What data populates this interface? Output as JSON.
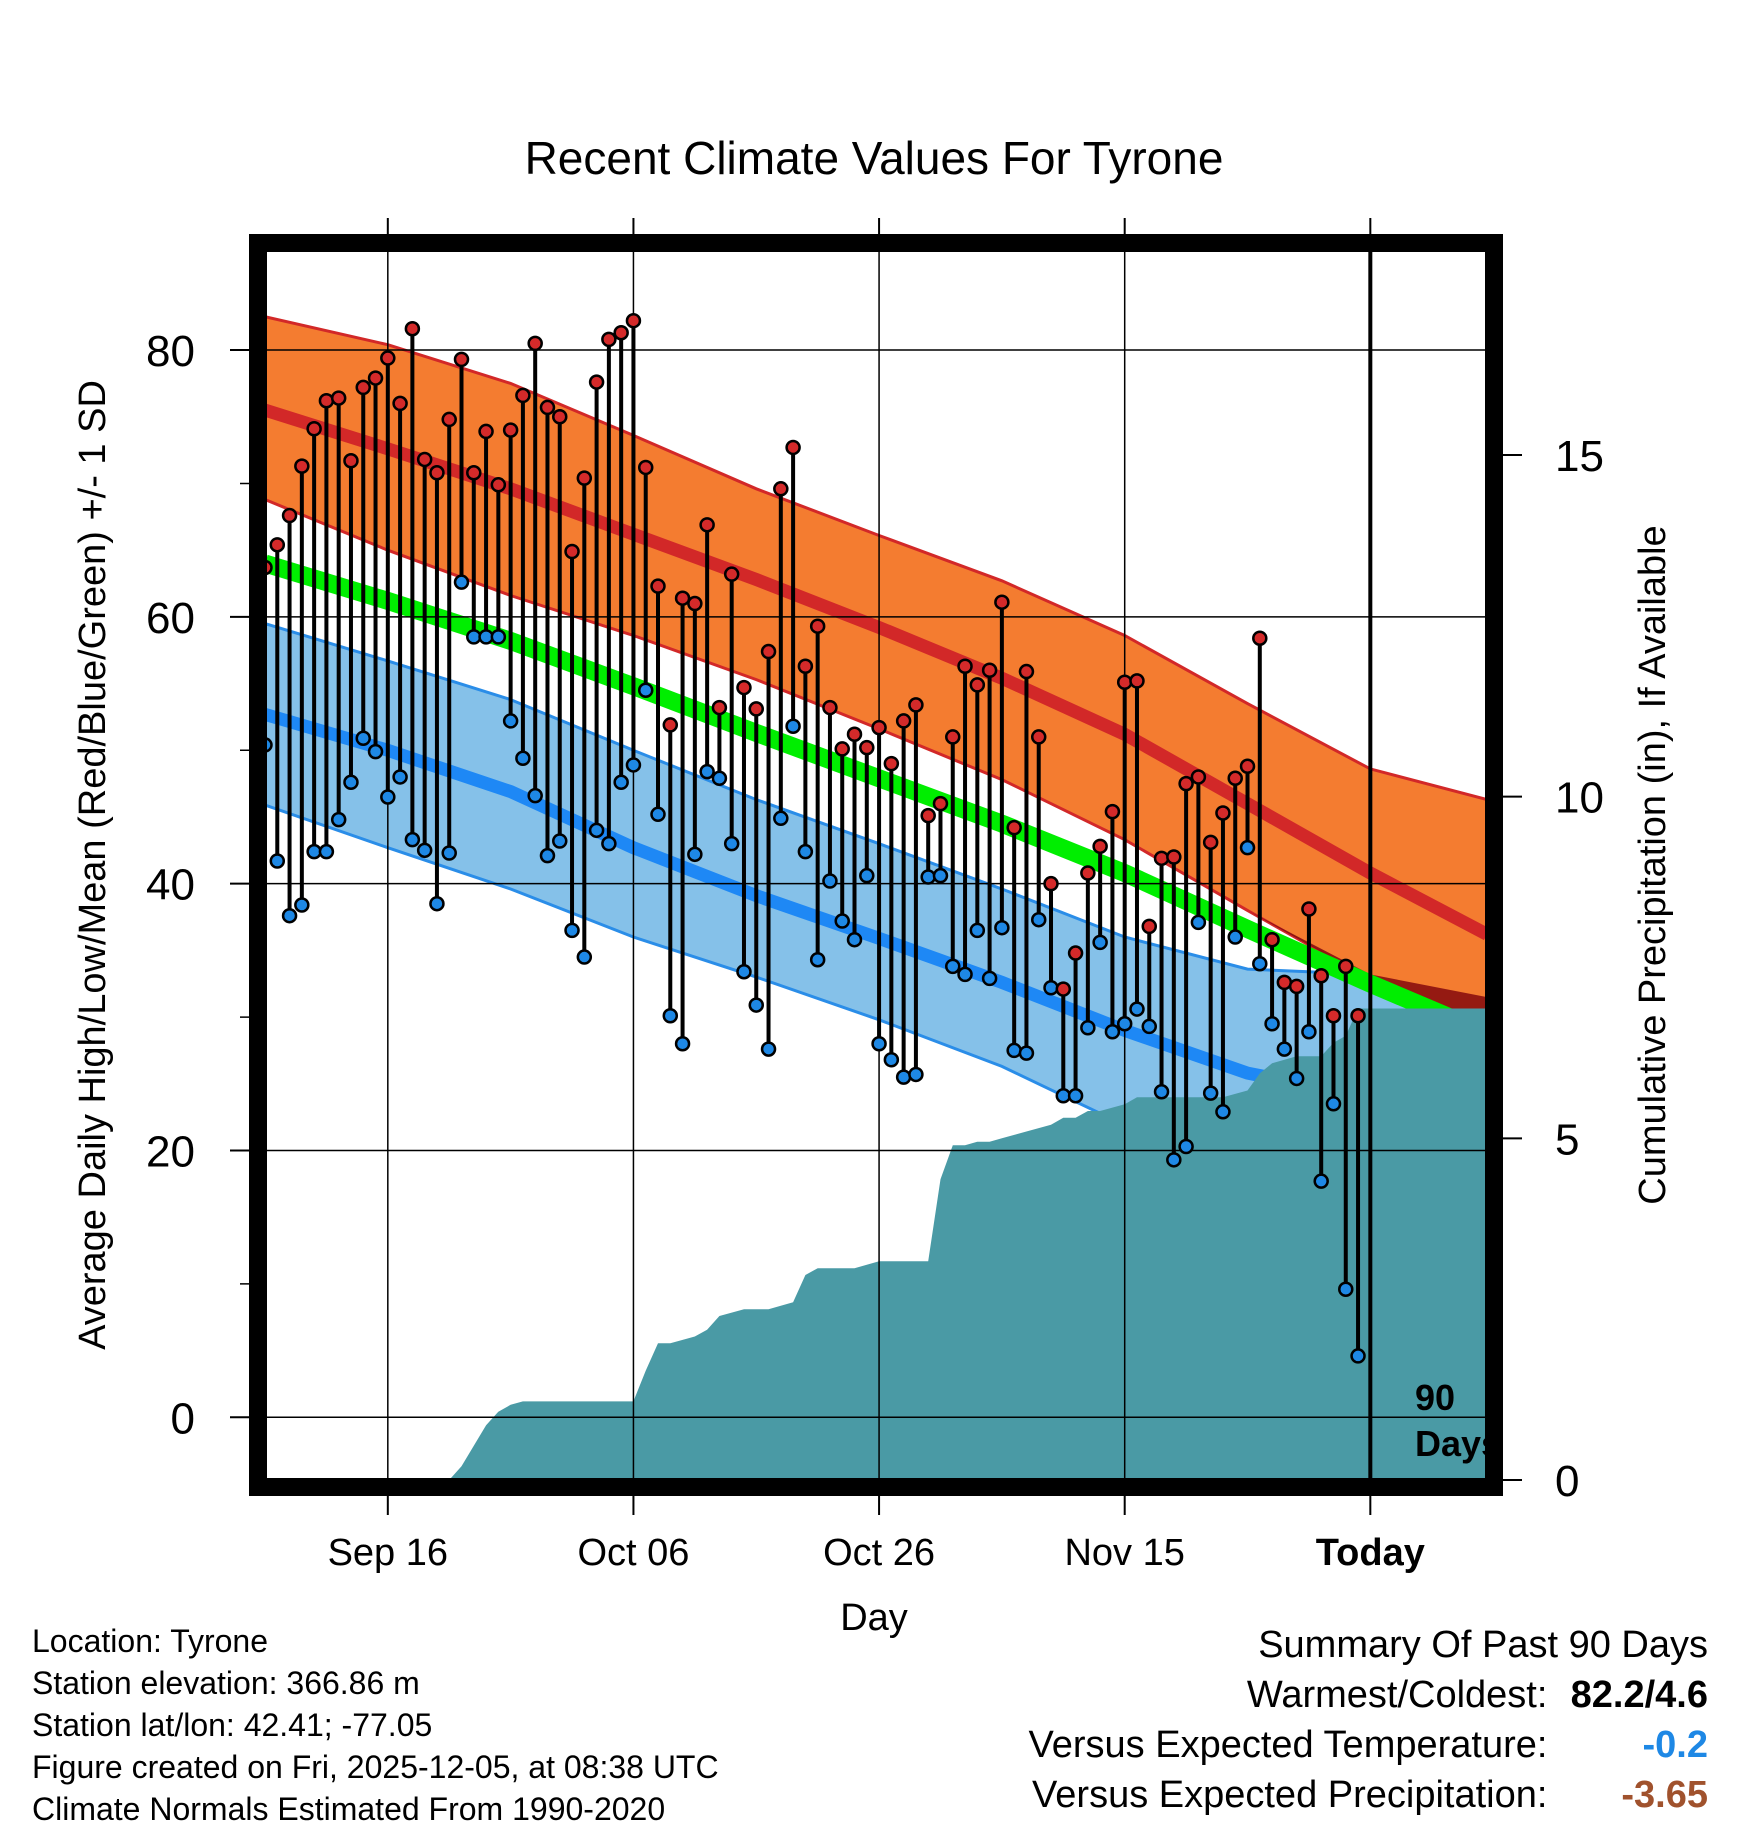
{
  "chart_data": {
    "type": "line",
    "title": "Recent Climate Values For Tyrone",
    "xlabel": "Day",
    "ylabel": "Average Daily High/Low/Mean (Red/Blue/Green) +/- 1 SD",
    "y2label": "Cumulative Precipitation (in), If Available",
    "x_start_date": "Sep 06",
    "x_tick_labels": [
      {
        "day": 10,
        "label": "Sep 16"
      },
      {
        "day": 30,
        "label": "Oct 06"
      },
      {
        "day": 50,
        "label": "Oct 26"
      },
      {
        "day": 70,
        "label": "Nov 15"
      },
      {
        "day": 90,
        "label": "Today"
      }
    ],
    "xlim": [
      0,
      99.5
    ],
    "ylim": [
      -4.7,
      87.5
    ],
    "y_ticks": [
      0,
      20,
      40,
      60,
      80
    ],
    "y2lim": [
      0,
      18
    ],
    "y2_ticks": [
      0,
      5,
      10,
      15
    ],
    "today_day": 90,
    "today_marker_label": [
      "90",
      "Days"
    ],
    "normals": {
      "days": [
        0,
        10,
        20,
        30,
        40,
        50,
        60,
        70,
        80,
        90,
        99.5
      ],
      "high_mean": [
        75.5,
        72.6,
        69.6,
        66.2,
        62.8,
        59.2,
        55.4,
        51.2,
        46.0,
        40.8,
        36.2
      ],
      "high_upper": [
        82.5,
        80.4,
        77.5,
        73.6,
        69.6,
        66.1,
        62.7,
        58.6,
        53.5,
        48.6,
        46.3
      ],
      "high_lower": [
        68.8,
        65.0,
        61.6,
        58.6,
        55.3,
        51.6,
        47.8,
        43.3,
        38.0,
        32.8,
        26.5
      ],
      "low_mean": [
        52.7,
        50.0,
        46.9,
        42.7,
        39.1,
        35.9,
        32.6,
        29.0,
        25.8,
        24.0,
        21.8
      ],
      "low_upper": [
        59.5,
        56.7,
        53.8,
        50.0,
        46.3,
        43.0,
        39.6,
        36.0,
        33.6,
        33.2,
        31.5
      ],
      "low_lower": [
        45.9,
        42.7,
        39.6,
        36.0,
        33.0,
        29.8,
        26.3,
        21.9,
        18.3,
        14.6,
        11.6
      ],
      "mean": [
        64.0,
        61.2,
        58.2,
        54.8,
        51.3,
        47.9,
        44.5,
        40.8,
        36.6,
        32.5,
        28.8
      ]
    },
    "series": [
      {
        "name": "Daily High",
        "color": "#d42a2a",
        "values": [
          63.7,
          65.4,
          67.6,
          71.3,
          74.1,
          76.2,
          76.4,
          71.7,
          77.2,
          77.9,
          79.4,
          76.0,
          81.6,
          71.8,
          70.8,
          74.8,
          79.3,
          70.8,
          73.9,
          69.9,
          74.0,
          76.6,
          80.5,
          75.7,
          75.0,
          64.9,
          70.4,
          77.6,
          80.8,
          81.3,
          82.2,
          71.2,
          62.3,
          51.9,
          61.4,
          61.0,
          66.9,
          53.2,
          63.2,
          54.7,
          53.1,
          57.4,
          69.6,
          72.7,
          56.3,
          59.3,
          53.2,
          50.1,
          51.2,
          50.2,
          51.7,
          49.0,
          52.2,
          53.4,
          45.1,
          46.0,
          51.0,
          56.3,
          54.9,
          56.0,
          61.1,
          44.2,
          55.9,
          51.0,
          40.0,
          32.1,
          34.8,
          40.8,
          42.8,
          45.4,
          55.1,
          55.2,
          36.8,
          41.9,
          42.0,
          47.5,
          48.0,
          43.1,
          45.3,
          47.9,
          48.8,
          58.4,
          35.8,
          32.6,
          32.3,
          38.1,
          33.1,
          30.1,
          33.8,
          30.1
        ]
      },
      {
        "name": "Daily Low",
        "color": "#1e88e5",
        "values": [
          50.4,
          41.7,
          37.6,
          38.4,
          42.4,
          42.4,
          44.8,
          47.6,
          50.9,
          49.9,
          46.5,
          48.0,
          43.3,
          42.5,
          38.5,
          42.3,
          62.6,
          58.5,
          58.5,
          58.5,
          52.2,
          49.4,
          46.6,
          42.1,
          43.2,
          36.5,
          34.5,
          44.0,
          43.0,
          47.6,
          48.9,
          54.5,
          45.2,
          30.1,
          28.0,
          42.2,
          48.4,
          47.9,
          43.0,
          33.4,
          30.9,
          27.6,
          44.9,
          51.8,
          42.4,
          34.3,
          40.2,
          37.2,
          35.8,
          40.6,
          28.0,
          26.8,
          25.5,
          25.7,
          40.5,
          40.6,
          33.8,
          33.2,
          36.5,
          32.9,
          36.7,
          27.5,
          27.3,
          37.3,
          32.2,
          24.1,
          24.1,
          29.2,
          35.6,
          28.9,
          29.5,
          30.6,
          29.3,
          24.4,
          19.3,
          20.3,
          37.1,
          24.3,
          22.9,
          36.0,
          42.7,
          34.0,
          29.5,
          27.6,
          25.4,
          28.9,
          17.7,
          23.5,
          9.6,
          4.6
        ]
      }
    ],
    "precip_cumulative": {
      "days": [
        0,
        15,
        16,
        17,
        18,
        19,
        20,
        21,
        30,
        31,
        32,
        33,
        34,
        35,
        36,
        37,
        38,
        39,
        40,
        41,
        42,
        43,
        44,
        45,
        46,
        47,
        48,
        49,
        50,
        51,
        52,
        53,
        54,
        55,
        56,
        57,
        58,
        59,
        60,
        61,
        62,
        63,
        64,
        65,
        66,
        67,
        68,
        69,
        70,
        71,
        72,
        73,
        74,
        75,
        76,
        77,
        78,
        79,
        80,
        81,
        82,
        83,
        84,
        85,
        86,
        87,
        88,
        89,
        90,
        99.5
      ],
      "values": [
        0,
        0.0,
        0.2,
        0.5,
        0.8,
        1.0,
        1.1,
        1.15,
        1.15,
        1.6,
        2.0,
        2.0,
        2.05,
        2.1,
        2.2,
        2.4,
        2.45,
        2.5,
        2.5,
        2.5,
        2.55,
        2.6,
        3.0,
        3.1,
        3.1,
        3.1,
        3.1,
        3.15,
        3.2,
        3.2,
        3.2,
        3.2,
        3.2,
        4.4,
        4.9,
        4.9,
        4.95,
        4.95,
        5.0,
        5.05,
        5.1,
        5.15,
        5.2,
        5.3,
        5.3,
        5.4,
        5.4,
        5.45,
        5.5,
        5.6,
        5.6,
        5.6,
        5.6,
        5.6,
        5.6,
        5.6,
        5.6,
        5.65,
        5.7,
        5.95,
        6.1,
        6.15,
        6.2,
        6.2,
        6.2,
        6.4,
        6.5,
        6.9,
        6.9,
        6.9
      ]
    }
  },
  "station_info": {
    "location": "Location: Tyrone",
    "elevation": "Station elevation: 366.86 m",
    "latlon": "Station lat/lon: 42.41; -77.05",
    "created": "Figure created on Fri, 2025-12-05, at 08:38 UTC",
    "normals": "Climate Normals Estimated From 1990-2020"
  },
  "summary": {
    "title": "Summary Of Past 90 Days",
    "warmest_coldest_label": "Warmest/Coldest:",
    "warmest_coldest_value": "82.2/4.6",
    "temp_label": "Versus Expected Temperature:",
    "temp_value": "-0.2",
    "precip_label": "Versus Expected Precipitation:",
    "precip_value": "-3.65"
  },
  "colors": {
    "high_band": "#f47c30",
    "high_mean_line": "#d22828",
    "high_lower_band_overlap": "#8b1010",
    "low_band": "#85c1e9",
    "low_mean_line": "#1e88f5",
    "mean_line": "#00ee00",
    "precip_fill": "#4a9aa5",
    "high_dot": "#d42a2a",
    "low_dot": "#1e88e5",
    "temp_value": "#1e88e5",
    "precip_value": "#a0522d"
  }
}
